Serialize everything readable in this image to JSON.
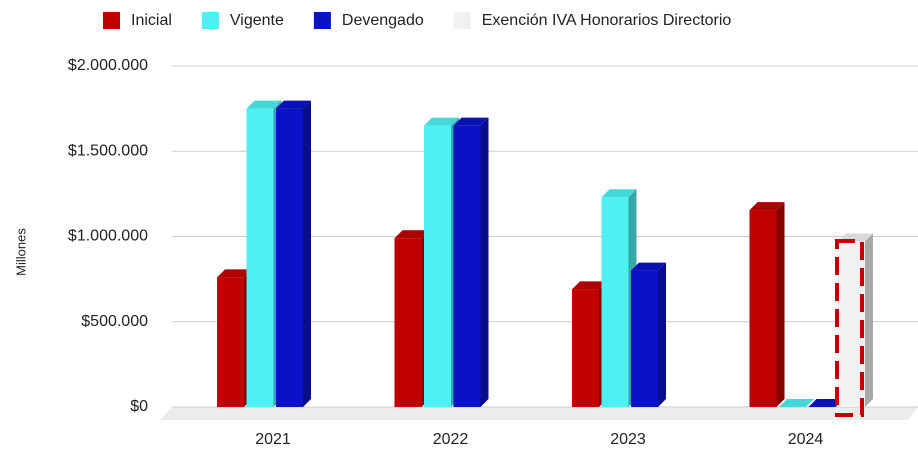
{
  "chart_data": {
    "type": "bar3d",
    "y_label": "Millones",
    "categories": [
      "2021",
      "2022",
      "2023",
      "2024"
    ],
    "series": [
      {
        "name": "Inicial",
        "color": "#c00000",
        "values": [
          760000,
          990000,
          690000,
          1155000
        ]
      },
      {
        "name": "Vigente",
        "color": "#4df0f3",
        "values": [
          1750000,
          1650000,
          1230000,
          0
        ]
      },
      {
        "name": "Devengado",
        "color": "#0a12c8",
        "values": [
          1750000,
          1650000,
          800000,
          0
        ]
      },
      {
        "name": "Exención IVA Honorarios Directorio",
        "color": "#f1f1f1",
        "values": [
          null,
          null,
          null,
          970000
        ]
      }
    ],
    "ylim": [
      0,
      2000000
    ],
    "yticks": [
      {
        "value": 0,
        "label": "$0"
      },
      {
        "value": 500000,
        "label": "$500.000"
      },
      {
        "value": 1000000,
        "label": "$1.000.000"
      },
      {
        "value": 1500000,
        "label": "$1.500.000"
      },
      {
        "value": 2000000,
        "label": "$2.000.000"
      }
    ],
    "grid": true,
    "legend": "top"
  }
}
